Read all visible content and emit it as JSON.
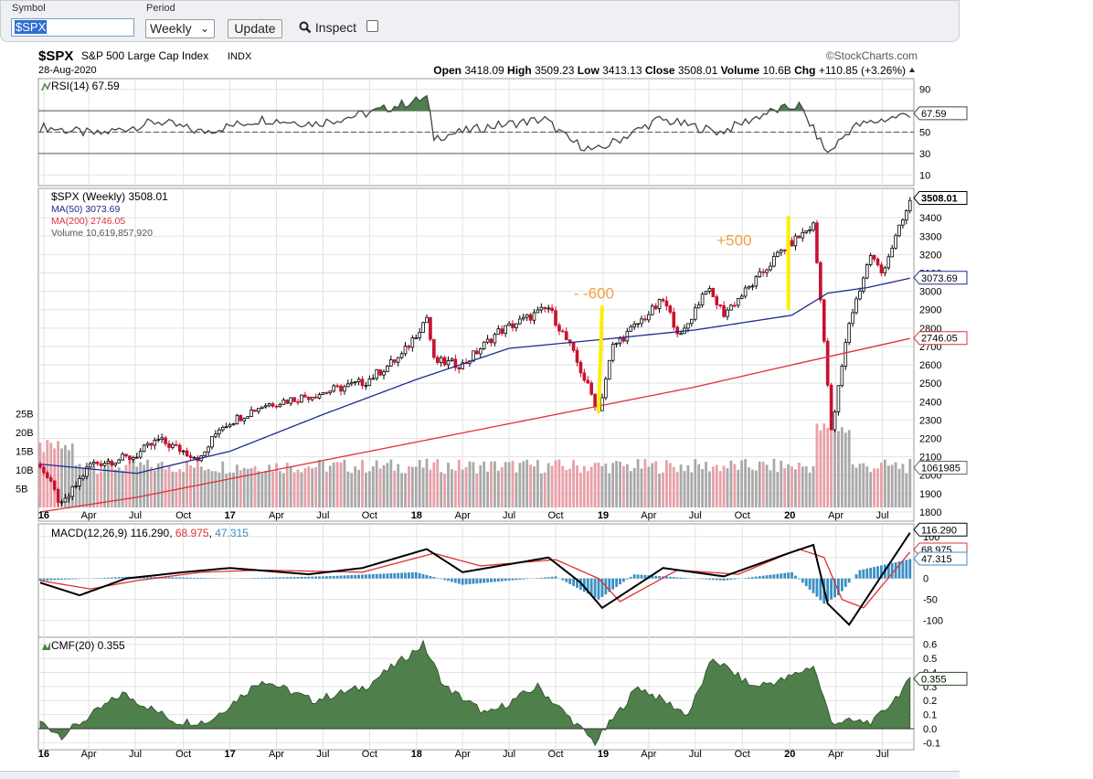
{
  "toolbar": {
    "symbol_label": "Symbol",
    "symbol_value": "$SPX",
    "period_label": "Period",
    "period_value": "Weekly",
    "update_label": "Update",
    "inspect_label": "Inspect"
  },
  "header": {
    "ticker": "$SPX",
    "name": "S&P 500 Large Cap Index",
    "exchange": "INDX",
    "brand": "©StockCharts.com",
    "date": "28-Aug-2020",
    "open_label": "Open",
    "open": "3418.09",
    "high_label": "High",
    "high": "3509.23",
    "low_label": "Low",
    "low": "3413.13",
    "close_label": "Close",
    "close": "3508.01",
    "volume_label": "Volume",
    "volume": "10.6B",
    "chg_label": "Chg",
    "chg": "+110.85 (+3.26%)"
  },
  "colors": {
    "price_up": "#000000",
    "price_down": "#c8102e",
    "ma50": "#1c2b8f",
    "ma200": "#e0303e",
    "volume_up": "#a9a9a9",
    "volume_down": "#e8a0a8",
    "rsi_line": "#444444",
    "rsi_fill": "#4f7f4a",
    "macd_line": "#000000",
    "signal_line": "#e03030",
    "histogram": "#3a8fc2",
    "cmf_fill": "#4f7f4a",
    "highlight": "#ffee00",
    "annotation": "#f0a040"
  },
  "chart_data": [
    {
      "type": "line",
      "panel": "RSI",
      "legend": "RSI(14) 67.59",
      "title": "RSI(14)",
      "current": 67.59,
      "current_label": "67.59",
      "ylim": [
        0,
        100
      ],
      "y_ticks": [
        "90",
        "70",
        "50",
        "30",
        "10"
      ],
      "reference_lines": [
        70,
        50,
        30
      ],
      "x": [
        "2015-12-28",
        "2016-04-18",
        "2016-08-15",
        "2016-11-07",
        "2017-03-06",
        "2017-06-19",
        "2017-10-02",
        "2018-01-22",
        "2018-02-05",
        "2018-05-21",
        "2018-09-10",
        "2018-10-29",
        "2018-12-17",
        "2019-04-22",
        "2019-08-19",
        "2019-11-18",
        "2020-01-20",
        "2020-03-16",
        "2020-05-04",
        "2020-07-06",
        "2020-08-28"
      ],
      "values": [
        55,
        48,
        60,
        50,
        62,
        58,
        68,
        82,
        45,
        55,
        62,
        42,
        32,
        62,
        50,
        68,
        75,
        30,
        55,
        62,
        67.59
      ]
    },
    {
      "type": "line",
      "panel": "Price",
      "legend_items": [
        {
          "text": "$SPX (Weekly) 3508.01"
        },
        {
          "text": "MA(50) 3073.69"
        },
        {
          "text": "MA(200) 2746.05"
        },
        {
          "text": "Volume 10,619,857,920"
        }
      ],
      "ylim": [
        1750,
        3560
      ],
      "y_ticks": [
        "3400",
        "3300",
        "3200",
        "3100",
        "3000",
        "2900",
        "2800",
        "2700",
        "2600",
        "2500",
        "2400",
        "2300",
        "2200",
        "2100",
        "2000",
        "1900",
        "1800"
      ],
      "volume_ticks": [
        "25B",
        "20B",
        "15B",
        "10B",
        "5B"
      ],
      "price_tags": [
        "3508.01",
        "3073.69",
        "2746.05",
        "1061985"
      ],
      "series": [
        {
          "name": "$SPX (Weekly)",
          "x": [
            "2015-12-28",
            "2016-02-08",
            "2016-04-04",
            "2016-06-27",
            "2016-08-15",
            "2016-11-07",
            "2016-12-12",
            "2017-03-06",
            "2017-06-19",
            "2017-09-25",
            "2017-12-04",
            "2018-01-22",
            "2018-02-05",
            "2018-04-02",
            "2018-06-11",
            "2018-09-17",
            "2018-10-29",
            "2018-12-24",
            "2019-01-21",
            "2019-04-29",
            "2019-06-03",
            "2019-07-22",
            "2019-08-26",
            "2019-10-28",
            "2019-12-16",
            "2020-02-17",
            "2020-03-09",
            "2020-03-23",
            "2020-04-27",
            "2020-06-08",
            "2020-06-29",
            "2020-08-28"
          ],
          "values": [
            2060,
            1830,
            2060,
            2100,
            2190,
            2090,
            2260,
            2380,
            2440,
            2510,
            2650,
            2860,
            2620,
            2600,
            2780,
            2910,
            2700,
            2350,
            2700,
            2950,
            2750,
            3020,
            2880,
            3060,
            3220,
            3360,
            2750,
            2230,
            2830,
            3200,
            3100,
            3508.01
          ]
        },
        {
          "name": "MA(50)",
          "x": [
            "2015-12-28",
            "2016-07-04",
            "2017-01-02",
            "2017-07-03",
            "2018-01-01",
            "2018-07-02",
            "2019-01-07",
            "2019-07-01",
            "2020-01-06",
            "2020-03-16",
            "2020-06-01",
            "2020-08-28"
          ],
          "values": [
            2060,
            2010,
            2130,
            2330,
            2520,
            2690,
            2740,
            2790,
            2870,
            2990,
            3020,
            3073.69
          ]
        },
        {
          "name": "MA(200)",
          "x": [
            "2015-12-28",
            "2016-07-04",
            "2017-07-03",
            "2018-07-02",
            "2019-07-01",
            "2020-01-06",
            "2020-08-28"
          ],
          "values": [
            1800,
            1880,
            2080,
            2280,
            2480,
            2600,
            2746.05
          ]
        }
      ],
      "annotations": [
        {
          "text": "- -600",
          "date": "2018-11-05",
          "price": 2960
        },
        {
          "text": "+500",
          "date": "2019-08-12",
          "price": 3250
        }
      ]
    },
    {
      "type": "line",
      "panel": "MACD",
      "legend": [
        "MACD(12,26,9) ",
        "116.290",
        ", ",
        "68.975",
        ", ",
        "47.315"
      ],
      "ylim": [
        -140,
        130
      ],
      "y_ticks": [
        "100",
        "50",
        "0",
        "-50",
        "-100"
      ],
      "value_tags": [
        "116.290",
        "68.975",
        "47.315"
      ],
      "series": [
        {
          "name": "MACD",
          "x": [
            "2015-12-28",
            "2016-03-14",
            "2016-06-13",
            "2016-10-03",
            "2017-01-02",
            "2017-06-05",
            "2017-09-18",
            "2018-01-22",
            "2018-04-02",
            "2018-09-17",
            "2018-11-19",
            "2018-12-31",
            "2019-04-29",
            "2019-08-26",
            "2019-12-30",
            "2020-02-17",
            "2020-03-16",
            "2020-04-27",
            "2020-08-28"
          ],
          "values": [
            -10,
            -40,
            0,
            15,
            25,
            10,
            25,
            70,
            15,
            50,
            -10,
            -70,
            25,
            5,
            60,
            80,
            -60,
            -110,
            116.29
          ]
        },
        {
          "name": "Signal",
          "x": [
            "2015-12-28",
            "2016-04-04",
            "2016-07-04",
            "2016-11-07",
            "2017-03-06",
            "2017-09-18",
            "2018-02-05",
            "2018-05-07",
            "2018-10-01",
            "2018-12-24",
            "2019-02-04",
            "2019-05-27",
            "2019-09-23",
            "2020-01-20",
            "2020-03-09",
            "2020-04-13",
            "2020-05-25",
            "2020-08-28"
          ],
          "values": [
            -5,
            -25,
            -5,
            15,
            20,
            15,
            60,
            30,
            45,
            0,
            -55,
            20,
            10,
            70,
            50,
            -50,
            -70,
            68.975
          ]
        },
        {
          "name": "Histogram",
          "x": [
            "2015-12-28",
            "2016-07-04",
            "2017-01-02",
            "2017-07-03",
            "2018-01-01",
            "2018-04-02",
            "2018-10-01",
            "2018-12-24",
            "2019-03-04",
            "2019-08-26",
            "2020-01-06",
            "2020-03-09",
            "2020-04-06",
            "2020-05-18",
            "2020-08-28"
          ],
          "values": [
            -5,
            5,
            0,
            5,
            15,
            -15,
            5,
            -50,
            10,
            -5,
            15,
            -60,
            -40,
            20,
            47.315
          ]
        }
      ]
    },
    {
      "type": "area",
      "panel": "CMF",
      "legend": "CMF(20) 0.355",
      "title": "CMF(20)",
      "current": 0.355,
      "current_label": "0.355",
      "ylim": [
        -0.15,
        0.65
      ],
      "y_ticks": [
        "0.6",
        "0.5",
        "0.4",
        "0.3",
        "0.2",
        "0.1",
        "0.0",
        "-0.1"
      ],
      "x": [
        "2015-12-28",
        "2016-02-08",
        "2016-06-06",
        "2016-09-19",
        "2016-11-21",
        "2017-03-06",
        "2017-06-12",
        "2017-09-25",
        "2018-01-15",
        "2018-02-26",
        "2018-05-21",
        "2018-08-27",
        "2018-12-17",
        "2019-03-11",
        "2019-06-17",
        "2019-08-05",
        "2019-10-21",
        "2019-12-23",
        "2020-02-17",
        "2020-03-23",
        "2020-06-15",
        "2020-08-28"
      ],
      "values": [
        0.05,
        -0.05,
        0.25,
        0.05,
        0.05,
        0.35,
        0.2,
        0.3,
        0.6,
        0.3,
        0.1,
        0.3,
        -0.1,
        0.3,
        0.1,
        0.5,
        0.3,
        0.35,
        0.45,
        0.05,
        0.05,
        0.355
      ]
    }
  ],
  "x_axis_labels": [
    "16",
    "Apr",
    "Jul",
    "Oct",
    "17",
    "Apr",
    "Jul",
    "Oct",
    "18",
    "Apr",
    "Jul",
    "Oct",
    "19",
    "Apr",
    "Jul",
    "Oct",
    "20",
    "Apr",
    "Jul"
  ]
}
